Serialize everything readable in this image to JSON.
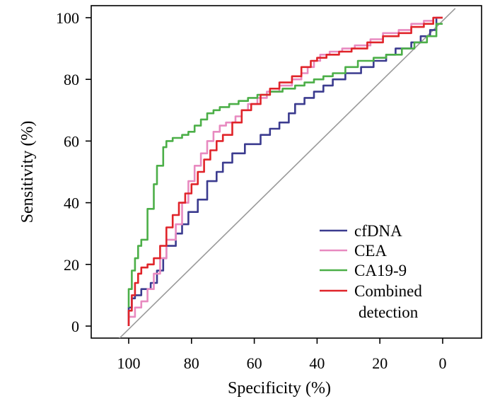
{
  "chart_data": {
    "type": "line",
    "title": "",
    "xlabel": "Specificity (%)",
    "ylabel": "Sensitivity (%)",
    "xlim": [
      112,
      -12
    ],
    "ylim": [
      -4,
      103
    ],
    "x_ticks": [
      100,
      80,
      60,
      40,
      20,
      0
    ],
    "x_tick_labels": [
      "100",
      "80",
      "60",
      "40",
      "20",
      "0"
    ],
    "y_ticks": [
      0,
      20,
      40,
      60,
      80,
      100
    ],
    "y_tick_labels": [
      "0",
      "20",
      "40",
      "60",
      "80",
      "100"
    ],
    "legend_position": "bottom-right",
    "reference_line": {
      "label": "",
      "color": "#9a9a9a",
      "points": [
        [
          103,
          -4
        ],
        [
          -4,
          103
        ]
      ]
    },
    "series": [
      {
        "name": "cfDNA",
        "color": "#3b3b8f",
        "points": [
          [
            100,
            0
          ],
          [
            99,
            6
          ],
          [
            98,
            9
          ],
          [
            96,
            10
          ],
          [
            93,
            12
          ],
          [
            91,
            14
          ],
          [
            89,
            18
          ],
          [
            88,
            22
          ],
          [
            85,
            26
          ],
          [
            83,
            30
          ],
          [
            81,
            33
          ],
          [
            78,
            37
          ],
          [
            75,
            41
          ],
          [
            72,
            47
          ],
          [
            70,
            50
          ],
          [
            67,
            53
          ],
          [
            63,
            56
          ],
          [
            58,
            59
          ],
          [
            55,
            62
          ],
          [
            52,
            64
          ],
          [
            49,
            66
          ],
          [
            47,
            69
          ],
          [
            44,
            72
          ],
          [
            41,
            74
          ],
          [
            38,
            76
          ],
          [
            35,
            78
          ],
          [
            31,
            80
          ],
          [
            26,
            82
          ],
          [
            22,
            84
          ],
          [
            18,
            86
          ],
          [
            15,
            88
          ],
          [
            10,
            90
          ],
          [
            7,
            92
          ],
          [
            4,
            94
          ],
          [
            2,
            96
          ],
          [
            0,
            100
          ]
        ]
      },
      {
        "name": "CEA",
        "color": "#e88ac0",
        "points": [
          [
            100,
            0
          ],
          [
            98,
            3
          ],
          [
            96,
            6
          ],
          [
            94,
            8
          ],
          [
            92,
            12
          ],
          [
            90,
            17
          ],
          [
            88,
            22
          ],
          [
            85,
            28
          ],
          [
            83,
            33
          ],
          [
            81,
            40
          ],
          [
            79,
            47
          ],
          [
            77,
            52
          ],
          [
            75,
            56
          ],
          [
            73,
            60
          ],
          [
            71,
            63
          ],
          [
            69,
            65
          ],
          [
            66,
            66
          ],
          [
            64,
            68
          ],
          [
            62,
            70
          ],
          [
            59,
            72
          ],
          [
            56,
            74
          ],
          [
            52,
            76
          ],
          [
            48,
            78
          ],
          [
            45,
            80
          ],
          [
            43,
            82
          ],
          [
            41,
            84
          ],
          [
            39,
            86
          ],
          [
            36,
            88
          ],
          [
            32,
            89
          ],
          [
            28,
            90
          ],
          [
            23,
            91
          ],
          [
            19,
            93
          ],
          [
            14,
            95
          ],
          [
            10,
            96
          ],
          [
            6,
            98
          ],
          [
            3,
            99
          ],
          [
            0,
            100
          ]
        ]
      },
      {
        "name": "CA19-9",
        "color": "#4caf48",
        "points": [
          [
            100,
            6
          ],
          [
            99,
            12
          ],
          [
            98,
            18
          ],
          [
            97,
            22
          ],
          [
            96,
            26
          ],
          [
            94,
            28
          ],
          [
            92,
            38
          ],
          [
            91,
            46
          ],
          [
            89,
            52
          ],
          [
            88,
            58
          ],
          [
            86,
            60
          ],
          [
            83,
            61
          ],
          [
            81,
            62
          ],
          [
            79,
            63
          ],
          [
            77,
            65
          ],
          [
            75,
            67
          ],
          [
            73,
            69
          ],
          [
            71,
            70
          ],
          [
            68,
            71
          ],
          [
            65,
            72
          ],
          [
            62,
            73
          ],
          [
            59,
            74
          ],
          [
            55,
            75
          ],
          [
            51,
            76
          ],
          [
            47,
            77
          ],
          [
            44,
            78
          ],
          [
            41,
            79
          ],
          [
            38,
            80
          ],
          [
            35,
            81
          ],
          [
            31,
            82
          ],
          [
            27,
            84
          ],
          [
            22,
            86
          ],
          [
            18,
            87
          ],
          [
            13,
            88
          ],
          [
            9,
            90
          ],
          [
            5,
            92
          ],
          [
            2,
            94
          ],
          [
            0,
            98
          ]
        ]
      },
      {
        "name": "Combined detection",
        "color": "#e0242a",
        "points": [
          [
            100,
            0
          ],
          [
            99,
            5
          ],
          [
            98,
            10
          ],
          [
            97,
            14
          ],
          [
            96,
            17
          ],
          [
            94,
            19
          ],
          [
            92,
            20
          ],
          [
            90,
            22
          ],
          [
            88,
            26
          ],
          [
            86,
            32
          ],
          [
            84,
            36
          ],
          [
            82,
            40
          ],
          [
            80,
            43
          ],
          [
            78,
            46
          ],
          [
            76,
            50
          ],
          [
            74,
            54
          ],
          [
            72,
            57
          ],
          [
            70,
            60
          ],
          [
            67,
            62
          ],
          [
            64,
            66
          ],
          [
            61,
            70
          ],
          [
            58,
            72
          ],
          [
            55,
            75
          ],
          [
            52,
            77
          ],
          [
            48,
            79
          ],
          [
            45,
            81
          ],
          [
            42,
            84
          ],
          [
            40,
            86
          ],
          [
            37,
            87
          ],
          [
            33,
            88
          ],
          [
            29,
            89
          ],
          [
            24,
            90
          ],
          [
            19,
            92
          ],
          [
            14,
            94
          ],
          [
            10,
            95
          ],
          [
            6,
            97
          ],
          [
            3,
            98
          ],
          [
            0,
            100
          ]
        ]
      }
    ]
  },
  "legend": {
    "entries": [
      {
        "label": "cfDNA",
        "color": "#3b3b8f"
      },
      {
        "label": "CEA",
        "color": "#e88ac0"
      },
      {
        "label": "CA19-9",
        "color": "#4caf48"
      },
      {
        "label": "Combined",
        "label_line2": "detection",
        "color": "#e0242a"
      }
    ]
  }
}
